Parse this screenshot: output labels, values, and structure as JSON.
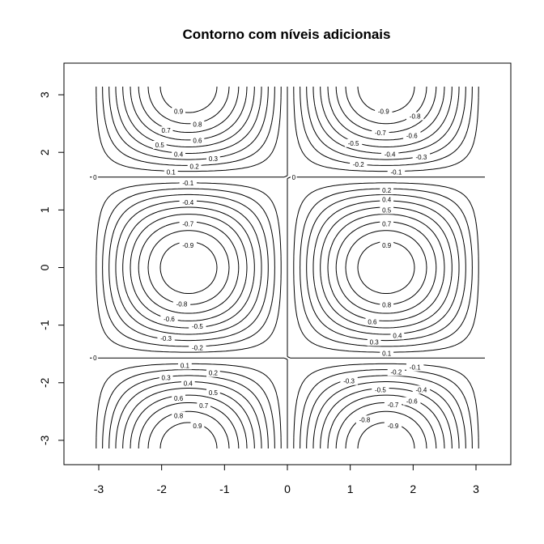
{
  "chart_data": {
    "type": "contour",
    "title": "Contorno com níveis adicionais",
    "xlabel": "",
    "ylabel": "",
    "xlim": [
      -3.14159,
      3.14159
    ],
    "ylim": [
      -3.14159,
      3.14159
    ],
    "x_ticks": [
      "-3",
      "-2",
      "-1",
      "0",
      "1",
      "2",
      "3"
    ],
    "y_ticks": [
      "-3",
      "-2",
      "-1",
      "0",
      "1",
      "2",
      "3"
    ],
    "x_tick_values": [
      -3,
      -2,
      -1,
      0,
      1,
      2,
      3
    ],
    "y_tick_values": [
      -3,
      -2,
      -1,
      0,
      1,
      2,
      3
    ],
    "function": "sin(x) * cos(y)",
    "levels": [
      -0.9,
      -0.8,
      -0.7,
      -0.6,
      -0.5,
      -0.4,
      -0.3,
      -0.2,
      -0.1,
      0,
      0.1,
      0.2,
      0.3,
      0.4,
      0.5,
      0.6,
      0.7,
      0.8,
      0.9
    ],
    "grid": false,
    "contour_labels": [
      {
        "text": "0.9",
        "x": -1.73,
        "y": 2.71
      },
      {
        "text": "0.8",
        "x": -1.43,
        "y": 2.49
      },
      {
        "text": "0.7",
        "x": -1.93,
        "y": 2.38
      },
      {
        "text": "0.6",
        "x": -1.43,
        "y": 2.21
      },
      {
        "text": "0.5",
        "x": -2.03,
        "y": 2.13
      },
      {
        "text": "0.4",
        "x": -1.73,
        "y": 1.97
      },
      {
        "text": "0.3",
        "x": -1.18,
        "y": 1.89
      },
      {
        "text": "0.2",
        "x": -1.48,
        "y": 1.76
      },
      {
        "text": "0.1",
        "x": -1.85,
        "y": 1.66
      },
      {
        "text": "-0.9",
        "x": 1.53,
        "y": 2.71
      },
      {
        "text": "-0.8",
        "x": 2.03,
        "y": 2.63
      },
      {
        "text": "-0.7",
        "x": 1.48,
        "y": 2.34
      },
      {
        "text": "-0.6",
        "x": 1.98,
        "y": 2.29
      },
      {
        "text": "-0.5",
        "x": 1.05,
        "y": 2.16
      },
      {
        "text": "-0.4",
        "x": 1.63,
        "y": 1.97
      },
      {
        "text": "-0.3",
        "x": 2.13,
        "y": 1.92
      },
      {
        "text": "-0.2",
        "x": 1.13,
        "y": 1.79
      },
      {
        "text": "-0.1",
        "x": 1.73,
        "y": 1.66
      },
      {
        "text": "0",
        "x": -3.06,
        "y": 1.57
      },
      {
        "text": "0",
        "x": 0.1,
        "y": 1.57
      },
      {
        "text": "-0.1",
        "x": -1.58,
        "y": 1.47
      },
      {
        "text": "-0.4",
        "x": -1.58,
        "y": 1.13
      },
      {
        "text": "-0.7",
        "x": -1.58,
        "y": 0.76
      },
      {
        "text": "-0.9",
        "x": -1.58,
        "y": 0.39
      },
      {
        "text": "-0.8",
        "x": -1.68,
        "y": -0.63
      },
      {
        "text": "-0.6",
        "x": -1.88,
        "y": -0.89
      },
      {
        "text": "-0.5",
        "x": -1.43,
        "y": -1.02
      },
      {
        "text": "-0.3",
        "x": -1.93,
        "y": -1.23
      },
      {
        "text": "-0.2",
        "x": -1.43,
        "y": -1.39
      },
      {
        "text": "0.2",
        "x": 1.58,
        "y": 1.34
      },
      {
        "text": "0.4",
        "x": 1.58,
        "y": 1.18
      },
      {
        "text": "0.5",
        "x": 1.58,
        "y": 1.0
      },
      {
        "text": "0.7",
        "x": 1.58,
        "y": 0.76
      },
      {
        "text": "0.9",
        "x": 1.58,
        "y": 0.39
      },
      {
        "text": "0.8",
        "x": 1.58,
        "y": -0.65
      },
      {
        "text": "0.6",
        "x": 1.35,
        "y": -0.94
      },
      {
        "text": "0.4",
        "x": 1.75,
        "y": -1.18
      },
      {
        "text": "0.3",
        "x": 1.38,
        "y": -1.29
      },
      {
        "text": "0.1",
        "x": 1.58,
        "y": -1.49
      },
      {
        "text": "0",
        "x": -3.06,
        "y": -1.57
      },
      {
        "text": "0.1",
        "x": -1.63,
        "y": -1.7
      },
      {
        "text": "0.2",
        "x": -1.18,
        "y": -1.83
      },
      {
        "text": "0.3",
        "x": -1.93,
        "y": -1.91
      },
      {
        "text": "0.4",
        "x": -1.58,
        "y": -2.01
      },
      {
        "text": "0.5",
        "x": -1.18,
        "y": -2.17
      },
      {
        "text": "0.6",
        "x": -1.73,
        "y": -2.27
      },
      {
        "text": "0.7",
        "x": -1.33,
        "y": -2.4
      },
      {
        "text": "0.8",
        "x": -1.73,
        "y": -2.57
      },
      {
        "text": "0.9",
        "x": -1.43,
        "y": -2.75
      },
      {
        "text": "-0.1",
        "x": 2.03,
        "y": -1.73
      },
      {
        "text": "-0.2",
        "x": 1.73,
        "y": -1.81
      },
      {
        "text": "-0.3",
        "x": 0.98,
        "y": -1.97
      },
      {
        "text": "-0.5",
        "x": 1.48,
        "y": -2.12
      },
      {
        "text": "-0.4",
        "x": 2.13,
        "y": -2.12
      },
      {
        "text": "-0.6",
        "x": 1.98,
        "y": -2.32
      },
      {
        "text": "-0.7",
        "x": 1.68,
        "y": -2.38
      },
      {
        "text": "-0.8",
        "x": 1.23,
        "y": -2.64
      },
      {
        "text": "-0.9",
        "x": 1.68,
        "y": -2.75
      }
    ]
  }
}
